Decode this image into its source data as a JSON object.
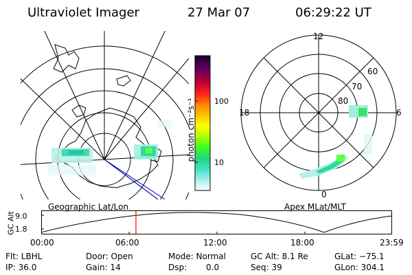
{
  "header": {
    "instrument": "Ultraviolet Imager",
    "date": "27 Mar 07",
    "time": "06:29:22 UT"
  },
  "colorbar": {
    "unit_label": "photon cm⁻²s⁻¹",
    "tick_100": "100",
    "tick_10": "10",
    "colors": [
      "#1a0030",
      "#400060",
      "#800060",
      "#c00020",
      "#ff2020",
      "#ff8000",
      "#ffc000",
      "#ffff00",
      "#c0ff00",
      "#60ff20",
      "#20e040",
      "#20d080",
      "#40e0c0",
      "#a0f0f0",
      "#e0ffff"
    ]
  },
  "left_map": {
    "caption": "Geographic Lat/Lon"
  },
  "right_map": {
    "caption": "Apex MLat/MLT",
    "mlt_top": "12",
    "mlt_left": "18",
    "mlt_right": "6",
    "mlt_bottom": "0",
    "lat_60": "60",
    "lat_70": "70",
    "lat_80": "80"
  },
  "altitude_plot": {
    "ylabel": "GC Alt",
    "y_top": "9.0",
    "y_bottom": "1.8",
    "x_ticks": [
      "00:00",
      "06:00",
      "12:00",
      "18:00",
      "23:59"
    ],
    "current_marker_color": "#ff0000"
  },
  "info": {
    "flt": "Flt: LBHL",
    "ip": "IP: 36.0",
    "door": "Door: Open",
    "gain": "Gain: 14",
    "mode": "Mode: Normal",
    "dsp_label": "Dsp:",
    "dsp_value": "0.0",
    "gc_alt": "GC Alt: 8.1 Re",
    "seq": "Seq: 39",
    "glat": "GLat: −75.1",
    "glon": "GLon: 304.1"
  }
}
